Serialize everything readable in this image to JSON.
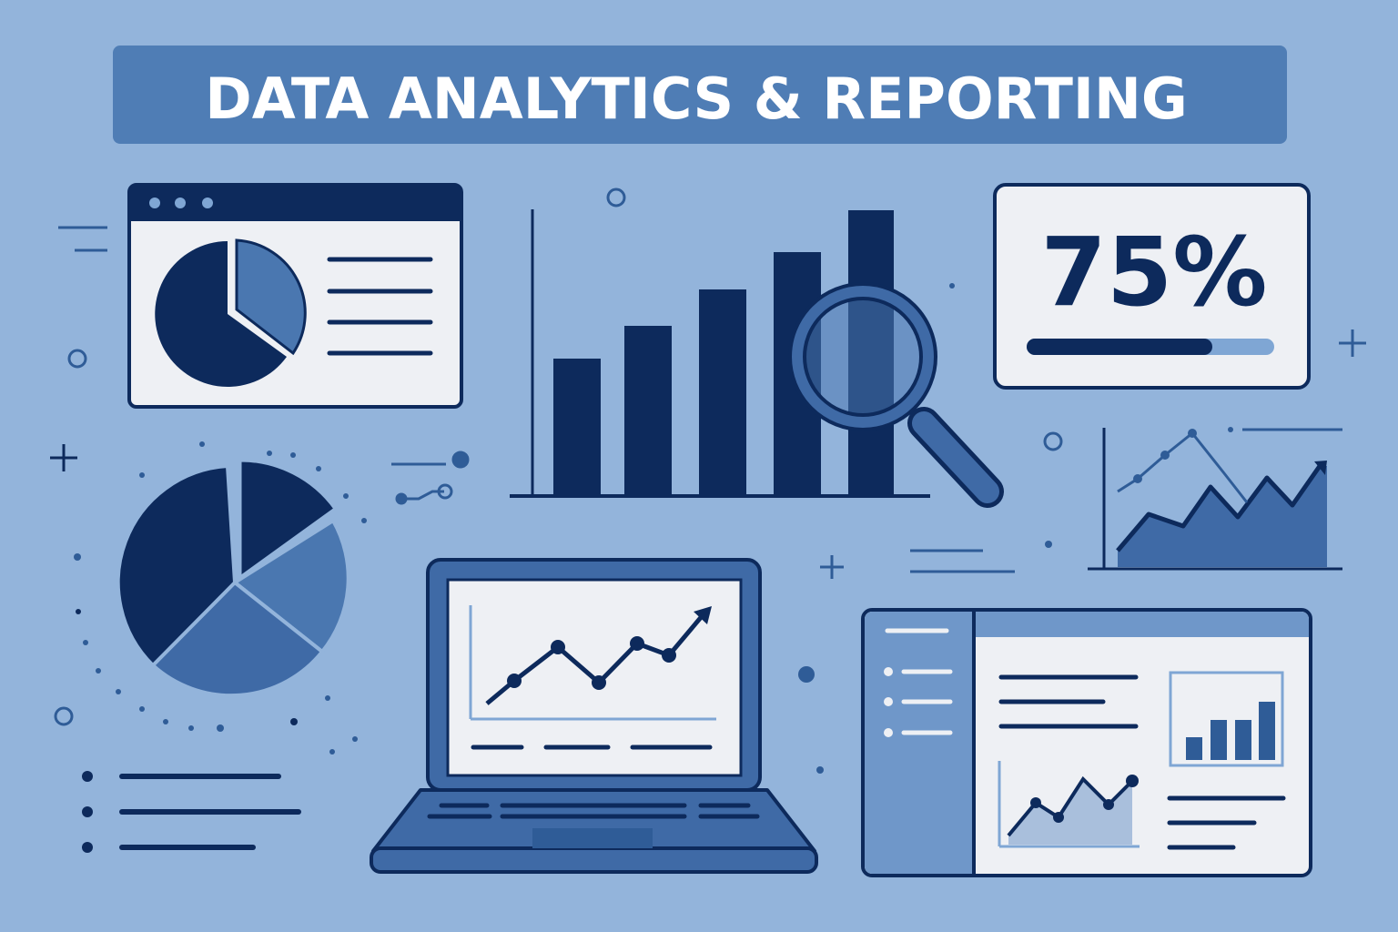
{
  "title": "DATA ANALYTICS & REPORTING",
  "kpi_card": {
    "value_label": "75%",
    "progress_fraction": 0.75
  },
  "colors": {
    "background": "#93b4db",
    "navy": "#0d2a5c",
    "mid_blue": "#4a77b0",
    "light_blue": "#7fa6d4",
    "panel": "#eef0f4",
    "banner": "#4f7db5"
  },
  "icons": [
    "pie-chart-window-icon",
    "bar-chart-icon",
    "magnifier-icon",
    "area-chart-icon",
    "pie-chart-icon",
    "laptop-icon",
    "dashboard-icon",
    "bullet-list-icon"
  ]
}
